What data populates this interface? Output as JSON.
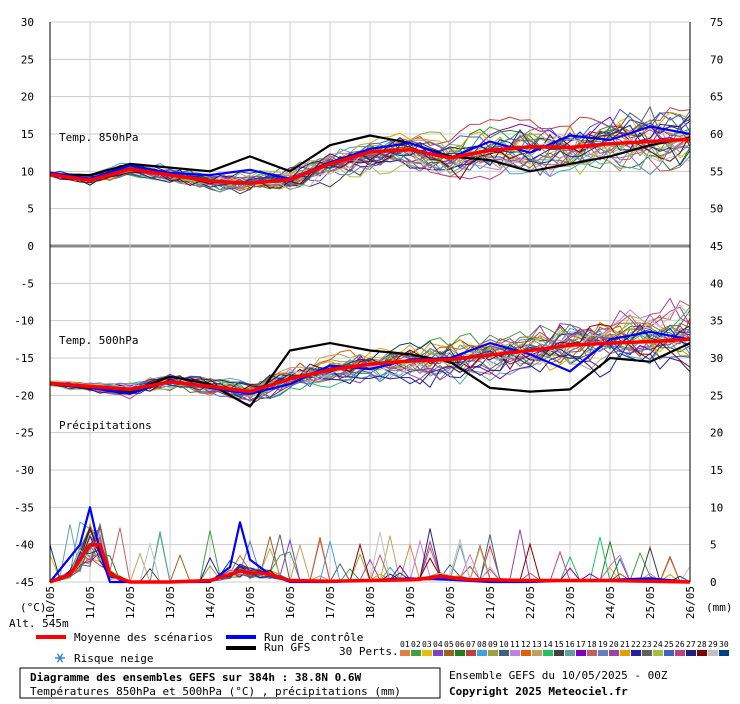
{
  "chart_data": {
    "type": "line",
    "title": "Diagramme des ensembles GEFS sur 384h : 38.8N 0.6W",
    "subtitle": "Températures 850hPa et 500hPa (°C) , précipitations (mm)",
    "left_axis": {
      "unit": "(°C)",
      "range": [
        -45,
        30
      ],
      "ticks": [
        "30",
        "25",
        "20",
        "15",
        "10",
        "5",
        "0",
        "-5",
        "-10",
        "-15",
        "-20",
        "-25",
        "-30",
        "-35",
        "-40",
        "-45"
      ]
    },
    "right_axis": {
      "unit": "(mm)",
      "ticks": [
        "75",
        "70",
        "65",
        "60",
        "55",
        "50",
        "45",
        "40",
        "35",
        "30",
        "25",
        "20",
        "15",
        "10",
        "5",
        "0"
      ]
    },
    "x_axis": {
      "range_hours": [
        0,
        384
      ],
      "tick_labels": [
        "10/05",
        "11/05",
        "12/05",
        "13/05",
        "14/05",
        "15/05",
        "16/05",
        "17/05",
        "18/05",
        "19/05",
        "20/05",
        "21/05",
        "22/05",
        "23/05",
        "24/05",
        "25/05",
        "26/05"
      ]
    },
    "panel_labels": {
      "t850": "Temp. 850hPa",
      "t500": "Temp. 500hPa",
      "precip": "Précipitations"
    },
    "altitude": "Alt. 545m",
    "legend": {
      "mean": "Moyenne des scénarios",
      "control": "Run de contrôle",
      "gfs": "Run GFS",
      "snow": "Risque neige",
      "perts": "30 Perts.",
      "pert_numbers": [
        "01",
        "02",
        "03",
        "04",
        "05",
        "06",
        "07",
        "08",
        "09",
        "10",
        "11",
        "12",
        "13",
        "14",
        "15",
        "16",
        "17",
        "18",
        "19",
        "20",
        "21",
        "22",
        "23",
        "24",
        "25",
        "26",
        "27",
        "28",
        "29",
        "30"
      ]
    },
    "pert_colors": [
      "#e08040",
      "#40a040",
      "#e0c000",
      "#8040c0",
      "#a06020",
      "#208020",
      "#c04040",
      "#40a0e0",
      "#a0a040",
      "#406080",
      "#c080e0",
      "#e06000",
      "#c0a060",
      "#20c060",
      "#404040",
      "#60a0a0",
      "#8000c0",
      "#c06060",
      "#6080c0",
      "#a040a0",
      "#e0a000",
      "#2020a0",
      "#606060",
      "#a0c040",
      "#4060c0",
      "#c04080",
      "#202080",
      "#800000",
      "#c0c0c0",
      "#004080"
    ],
    "run_info": "Ensemble GEFS du 10/05/2025 - 00Z",
    "copyright": "Copyright 2025 Meteociel.fr",
    "series": [
      {
        "name": "Moyenne des scénarios",
        "panel": "t850",
        "x_hours": [
          0,
          24,
          48,
          72,
          96,
          120,
          144,
          168,
          192,
          216,
          240,
          264,
          288,
          312,
          336,
          360,
          384
        ],
        "values": [
          9.6,
          8.8,
          10.3,
          9.5,
          8.7,
          8.4,
          8.9,
          11.0,
          12.6,
          12.9,
          11.8,
          12.8,
          13.3,
          13.2,
          13.7,
          14.0,
          14.3
        ]
      },
      {
        "name": "Run de contrôle",
        "panel": "t850",
        "x_hours": [
          0,
          24,
          48,
          72,
          96,
          120,
          144,
          168,
          192,
          216,
          240,
          264,
          288,
          312,
          336,
          360,
          384
        ],
        "values": [
          9.8,
          9.0,
          10.8,
          9.8,
          9.5,
          10.2,
          9.0,
          11.2,
          13.0,
          13.8,
          11.8,
          14.0,
          12.5,
          14.8,
          14.2,
          16.0,
          15.0
        ]
      },
      {
        "name": "Run GFS",
        "panel": "t850",
        "x_hours": [
          0,
          24,
          48,
          72,
          96,
          120,
          144,
          168,
          192,
          216,
          240,
          264,
          288,
          312,
          336,
          360,
          384
        ],
        "values": [
          9.6,
          9.5,
          11.0,
          10.5,
          10.0,
          12.0,
          10.0,
          13.5,
          14.8,
          13.8,
          12.0,
          11.5,
          10.0,
          11.0,
          12.0,
          13.5,
          14.5
        ]
      },
      {
        "name": "Moyenne des scénarios",
        "panel": "t500",
        "x_hours": [
          0,
          24,
          48,
          72,
          96,
          120,
          144,
          168,
          192,
          216,
          240,
          264,
          288,
          312,
          336,
          360,
          384
        ],
        "values": [
          -18.4,
          -18.8,
          -19.2,
          -18.2,
          -18.8,
          -19.5,
          -17.8,
          -16.6,
          -15.8,
          -15.4,
          -15.2,
          -14.6,
          -14.0,
          -13.3,
          -13.0,
          -12.8,
          -12.5
        ]
      },
      {
        "name": "Run de contrôle",
        "panel": "t500",
        "x_hours": [
          0,
          24,
          48,
          72,
          96,
          120,
          144,
          168,
          192,
          216,
          240,
          264,
          288,
          312,
          336,
          360,
          384
        ],
        "values": [
          -18.5,
          -19.0,
          -19.8,
          -18.0,
          -19.0,
          -19.8,
          -18.5,
          -16.0,
          -16.5,
          -15.2,
          -15.0,
          -13.0,
          -14.5,
          -16.8,
          -12.5,
          -11.5,
          -12.5
        ]
      },
      {
        "name": "Run GFS",
        "panel": "t500",
        "x_hours": [
          0,
          24,
          48,
          72,
          96,
          120,
          144,
          168,
          192,
          216,
          240,
          264,
          288,
          312,
          336,
          360,
          384
        ],
        "values": [
          -18.5,
          -19.0,
          -19.5,
          -17.5,
          -18.5,
          -21.5,
          -14.0,
          -13.0,
          -14.0,
          -14.5,
          -15.5,
          -19.0,
          -19.5,
          -19.2,
          -15.0,
          -15.5,
          -13.0
        ]
      },
      {
        "name": "Moyenne des scénarios",
        "panel": "precip",
        "x_hours": [
          0,
          12,
          18,
          24,
          30,
          36,
          48,
          72,
          96,
          108,
          114,
          120,
          126,
          132,
          144,
          168,
          192,
          216,
          228,
          234,
          240,
          252,
          264,
          288,
          312,
          336,
          360,
          384
        ],
        "values": [
          0,
          1,
          3,
          5,
          5,
          1,
          0,
          0,
          0.2,
          1,
          1.5,
          1.2,
          1.2,
          1.0,
          0.2,
          0.1,
          0.2,
          0.3,
          0.5,
          0.8,
          0.6,
          0.3,
          0.3,
          0.2,
          0.2,
          0.2,
          0.1,
          0
        ]
      },
      {
        "name": "Run de contrôle",
        "panel": "precip",
        "x_hours": [
          0,
          18,
          24,
          30,
          36,
          48,
          96,
          108,
          114,
          120,
          126,
          132,
          144,
          168,
          216,
          240,
          264,
          288,
          312,
          336,
          360,
          384
        ],
        "values": [
          0,
          5,
          10,
          4,
          0,
          0,
          0,
          2,
          8,
          3,
          2,
          1,
          0,
          0,
          0.5,
          0.3,
          0,
          0,
          0.2,
          0.3,
          0.5,
          0
        ]
      }
    ]
  }
}
